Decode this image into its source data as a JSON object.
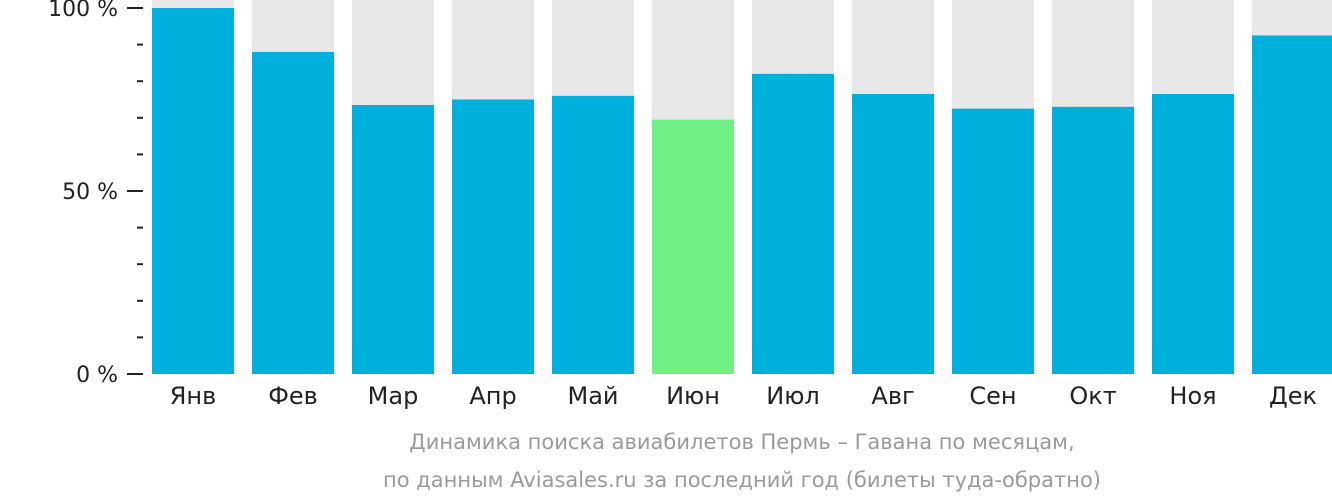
{
  "chart_data": {
    "type": "bar",
    "categories": [
      "Янв",
      "Фев",
      "Мар",
      "Апр",
      "Май",
      "Июн",
      "Июл",
      "Авг",
      "Сен",
      "Окт",
      "Ноя",
      "Дек"
    ],
    "values": [
      100,
      88,
      73.5,
      75,
      76,
      69.5,
      82,
      76.5,
      72.5,
      73,
      76.5,
      92.5
    ],
    "ylim": [
      0,
      100
    ],
    "yticks": [
      {
        "value": 0,
        "label": "0 %"
      },
      {
        "value": 50,
        "label": "50 %"
      },
      {
        "value": 100,
        "label": "100 %"
      }
    ],
    "minor_tick_step": 10,
    "highlight_index": 5,
    "colors": {
      "bar": "#00b0dc",
      "highlight": "#6ef084",
      "background_bar": "#e8e8e8",
      "axis": "#222222"
    },
    "caption_line1": "Динамика поиска авиабилетов Пермь – Гавана по месяцам,",
    "caption_line2": "по данным Aviasales.ru за последний год (билеты туда-обратно)"
  }
}
